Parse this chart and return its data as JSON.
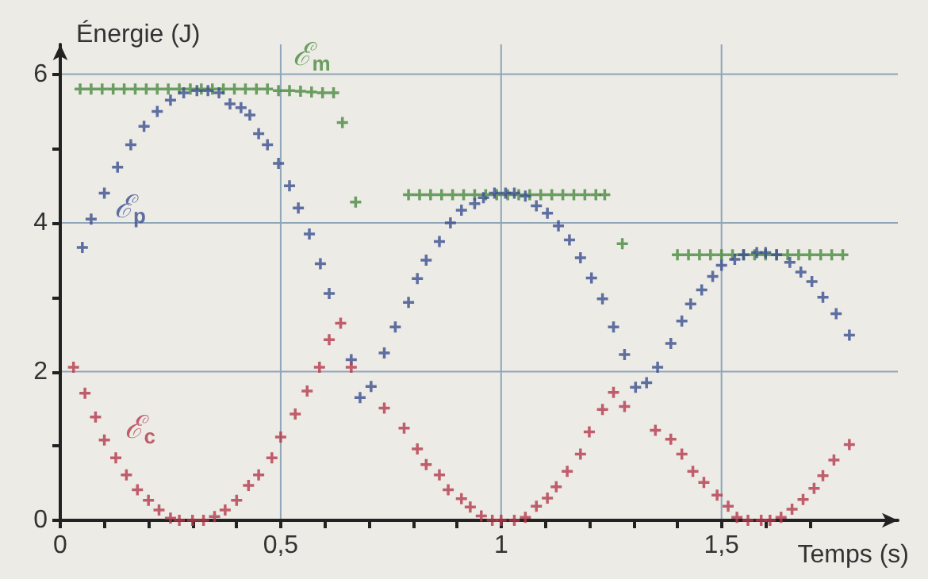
{
  "chart_data": {
    "type": "scatter",
    "ylabel": "Énergie (J)",
    "xlabel": "Temps (s)",
    "xlim": [
      0,
      1.9
    ],
    "ylim": [
      0,
      6.4
    ],
    "xticks": [
      0,
      {
        "value": 0.1,
        "label": null
      },
      {
        "value": 0.2,
        "label": null
      },
      {
        "value": 0.3,
        "label": null
      },
      {
        "value": 0.4,
        "label": null
      },
      {
        "value": 0.5,
        "label": "0,5"
      },
      {
        "value": 0.6,
        "label": null
      },
      {
        "value": 0.7,
        "label": null
      },
      {
        "value": 0.8,
        "label": null
      },
      {
        "value": 0.9,
        "label": null
      },
      1,
      {
        "value": 1.1,
        "label": null
      },
      {
        "value": 1.2,
        "label": null
      },
      {
        "value": 1.3,
        "label": null
      },
      {
        "value": 1.4,
        "label": null
      },
      {
        "value": 1.5,
        "label": "1,5"
      },
      {
        "value": 1.6,
        "label": null
      },
      {
        "value": 1.7,
        "label": null
      }
    ],
    "yticks": [
      0,
      {
        "value": 1,
        "label": null
      },
      2,
      {
        "value": 3,
        "label": null
      },
      4,
      {
        "value": 5,
        "label": null
      },
      6
    ],
    "grid": true,
    "marker": "cross",
    "legend": false,
    "series": [
      {
        "name": "ℰ$_{m}$",
        "color": "#4a8a3e",
        "x": [
          0.045,
          0.07,
          0.095,
          0.12,
          0.145,
          0.17,
          0.195,
          0.22,
          0.245,
          0.27,
          0.295,
          0.32,
          0.345,
          0.37,
          0.395,
          0.42,
          0.445,
          0.47,
          0.495,
          0.52,
          0.545,
          0.57,
          0.595,
          0.62,
          0.64,
          0.67,
          0.79,
          0.815,
          0.84,
          0.865,
          0.89,
          0.915,
          0.94,
          0.965,
          0.99,
          1.015,
          1.04,
          1.065,
          1.09,
          1.115,
          1.14,
          1.165,
          1.19,
          1.215,
          1.235,
          1.275,
          1.4,
          1.425,
          1.45,
          1.475,
          1.5,
          1.525,
          1.55,
          1.575,
          1.6,
          1.625,
          1.65,
          1.675,
          1.7,
          1.725,
          1.75,
          1.775
        ],
        "values": [
          5.8,
          5.8,
          5.8,
          5.8,
          5.8,
          5.8,
          5.8,
          5.8,
          5.8,
          5.8,
          5.8,
          5.8,
          5.8,
          5.8,
          5.8,
          5.8,
          5.8,
          5.8,
          5.78,
          5.78,
          5.77,
          5.76,
          5.75,
          5.75,
          5.35,
          4.28,
          4.38,
          4.38,
          4.38,
          4.38,
          4.38,
          4.38,
          4.38,
          4.38,
          4.38,
          4.38,
          4.38,
          4.38,
          4.38,
          4.38,
          4.38,
          4.38,
          4.38,
          4.38,
          4.38,
          3.72,
          3.57,
          3.57,
          3.57,
          3.57,
          3.57,
          3.57,
          3.57,
          3.57,
          3.57,
          3.57,
          3.57,
          3.57,
          3.57,
          3.57,
          3.57,
          3.57
        ]
      },
      {
        "name": "ℰ$_{p}$",
        "color": "#3b4f8e",
        "x": [
          0.05,
          0.07,
          0.1,
          0.13,
          0.16,
          0.19,
          0.22,
          0.25,
          0.28,
          0.31,
          0.335,
          0.36,
          0.385,
          0.41,
          0.43,
          0.45,
          0.47,
          0.495,
          0.52,
          0.54,
          0.565,
          0.59,
          0.61,
          0.66,
          0.68,
          0.705,
          0.735,
          0.76,
          0.79,
          0.81,
          0.83,
          0.86,
          0.885,
          0.91,
          0.94,
          0.96,
          0.985,
          1.01,
          1.03,
          1.055,
          1.08,
          1.105,
          1.13,
          1.155,
          1.18,
          1.205,
          1.23,
          1.255,
          1.28,
          1.305,
          1.33,
          1.355,
          1.385,
          1.41,
          1.43,
          1.455,
          1.48,
          1.5,
          1.53,
          1.55,
          1.58,
          1.6,
          1.625,
          1.655,
          1.68,
          1.705,
          1.73,
          1.76,
          1.79
        ],
        "values": [
          3.67,
          4.05,
          4.4,
          4.75,
          5.05,
          5.3,
          5.5,
          5.65,
          5.75,
          5.78,
          5.78,
          5.75,
          5.6,
          5.55,
          5.45,
          5.2,
          5.05,
          4.8,
          4.5,
          4.2,
          3.85,
          3.45,
          3.05,
          2.16,
          1.65,
          1.8,
          2.25,
          2.6,
          2.93,
          3.25,
          3.5,
          3.75,
          4.0,
          4.17,
          4.26,
          4.34,
          4.4,
          4.4,
          4.4,
          4.36,
          4.23,
          4.13,
          3.96,
          3.77,
          3.53,
          3.26,
          2.98,
          2.6,
          2.23,
          1.79,
          1.85,
          2.06,
          2.38,
          2.68,
          2.91,
          3.1,
          3.28,
          3.43,
          3.51,
          3.57,
          3.6,
          3.6,
          3.57,
          3.47,
          3.34,
          3.21,
          3.0,
          2.78,
          2.49
        ]
      },
      {
        "name": "ℰ$_{c}$",
        "color": "#b53a4b",
        "x": [
          0.03,
          0.056,
          0.08,
          0.1,
          0.126,
          0.15,
          0.175,
          0.2,
          0.224,
          0.25,
          0.27,
          0.3,
          0.325,
          0.35,
          0.374,
          0.4,
          0.427,
          0.45,
          0.48,
          0.5,
          0.533,
          0.56,
          0.588,
          0.61,
          0.636,
          0.66,
          0.735,
          0.78,
          0.81,
          0.83,
          0.86,
          0.88,
          0.91,
          0.93,
          0.955,
          0.98,
          1.0,
          1.03,
          1.055,
          1.08,
          1.105,
          1.125,
          1.15,
          1.18,
          1.2,
          1.23,
          1.255,
          1.28,
          1.35,
          1.385,
          1.41,
          1.435,
          1.46,
          1.49,
          1.515,
          1.535,
          1.56,
          1.59,
          1.61,
          1.635,
          1.66,
          1.685,
          1.71,
          1.73,
          1.755,
          1.79
        ],
        "values": [
          2.06,
          1.71,
          1.39,
          1.08,
          0.84,
          0.61,
          0.41,
          0.27,
          0.14,
          0.03,
          0,
          0,
          0,
          0.05,
          0.14,
          0.27,
          0.47,
          0.61,
          0.84,
          1.12,
          1.43,
          1.74,
          2.06,
          2.43,
          2.65,
          2.06,
          1.51,
          1.24,
          0.96,
          0.75,
          0.61,
          0.41,
          0.29,
          0.18,
          0.06,
          0,
          0,
          0,
          0.04,
          0.19,
          0.3,
          0.45,
          0.66,
          0.89,
          1.19,
          1.49,
          1.72,
          1.53,
          1.21,
          1.09,
          0.89,
          0.66,
          0.51,
          0.34,
          0.19,
          0.04,
          0,
          0,
          0,
          0.04,
          0.15,
          0.28,
          0.43,
          0.6,
          0.81,
          1.02
        ]
      }
    ]
  }
}
